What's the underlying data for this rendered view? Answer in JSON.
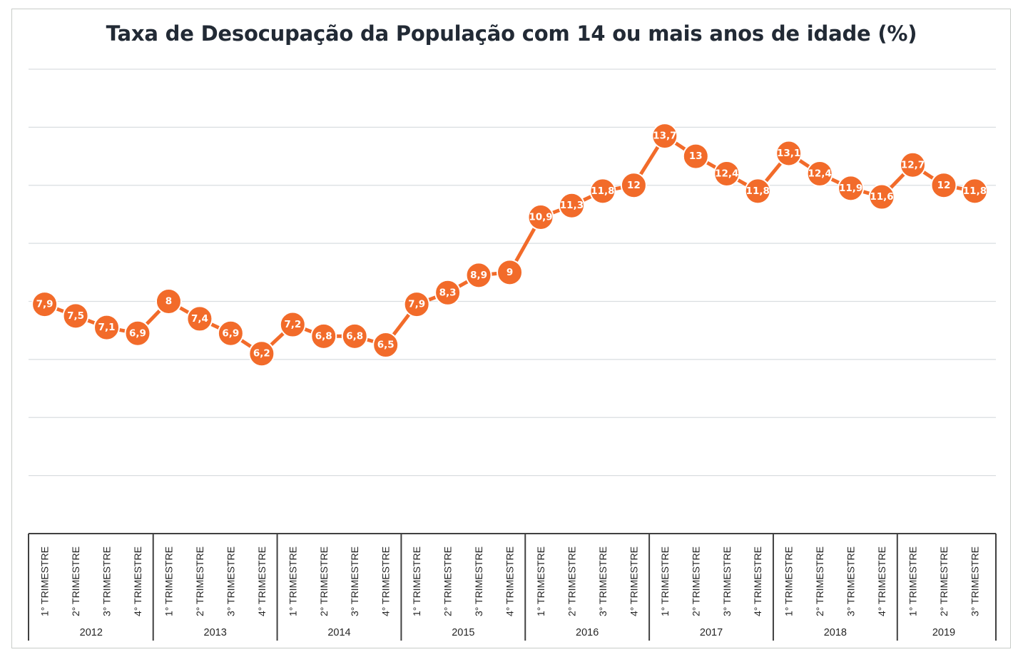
{
  "chart_data": {
    "type": "line",
    "title": "Taxa de Desocupação da População com 14 ou mais anos de idade (%)",
    "xlabel": "",
    "ylabel": "",
    "grid": true,
    "legend": "none",
    "ylim": [
      0,
      16
    ],
    "groups": [
      {
        "year": "2012",
        "quarters": [
          "1° TRIMESTRE",
          "2° TRIMESTRE",
          "3° TRIMESTRE",
          "4° TRIMESTRE"
        ]
      },
      {
        "year": "2013",
        "quarters": [
          "1° TRIMESTRE",
          "2° TRIMESTRE",
          "3° TRIMESTRE",
          "4° TRIMESTRE"
        ]
      },
      {
        "year": "2014",
        "quarters": [
          "1° TRIMESTRE",
          "2° TRIMESTRE",
          "3° TRIMESTRE",
          "4° TRIMESTRE"
        ]
      },
      {
        "year": "2015",
        "quarters": [
          "1° TRIMESTRE",
          "2° TRIMESTRE",
          "3° TRIMESTRE",
          "4° TRIMESTRE"
        ]
      },
      {
        "year": "2016",
        "quarters": [
          "1° TRIMESTRE",
          "2° TRIMESTRE",
          "3° TRIMESTRE",
          "4° TRIMESTRE"
        ]
      },
      {
        "year": "2017",
        "quarters": [
          "1° TRIMESTRE",
          "2° TRIMESTRE",
          "3° TRIMESTRE",
          "4° TRIMESTRE"
        ]
      },
      {
        "year": "2018",
        "quarters": [
          "1° TRIMESTRE",
          "2° TRIMESTRE",
          "3° TRIMESTRE",
          "4° TRIMESTRE"
        ]
      },
      {
        "year": "2019",
        "quarters": [
          "1° TRIMESTRE",
          "2° TRIMESTRE",
          "3° TRIMESTRE"
        ]
      }
    ],
    "series": [
      {
        "values": [
          7.9,
          7.5,
          7.1,
          6.9,
          8,
          7.4,
          6.9,
          6.2,
          7.2,
          6.8,
          6.8,
          6.5,
          7.9,
          8.3,
          8.9,
          9,
          10.9,
          11.3,
          11.8,
          12,
          13.7,
          13,
          12.4,
          11.8,
          13.1,
          12.4,
          11.9,
          11.6,
          12.7,
          12,
          11.8
        ],
        "labels": [
          "7,9",
          "7,5",
          "7,1",
          "6,9",
          "8",
          "7,4",
          "6,9",
          "6,2",
          "7,2",
          "6,8",
          "6,8",
          "6,5",
          "7,9",
          "8,3",
          "8,9",
          "9",
          "10,9",
          "11,3",
          "11,8",
          "12",
          "13,7",
          "13",
          "12,4",
          "11,8",
          "13,1",
          "12,4",
          "11,9",
          "11,6",
          "12,7",
          "12",
          "11,8"
        ],
        "color": "#f26b2a"
      }
    ]
  }
}
